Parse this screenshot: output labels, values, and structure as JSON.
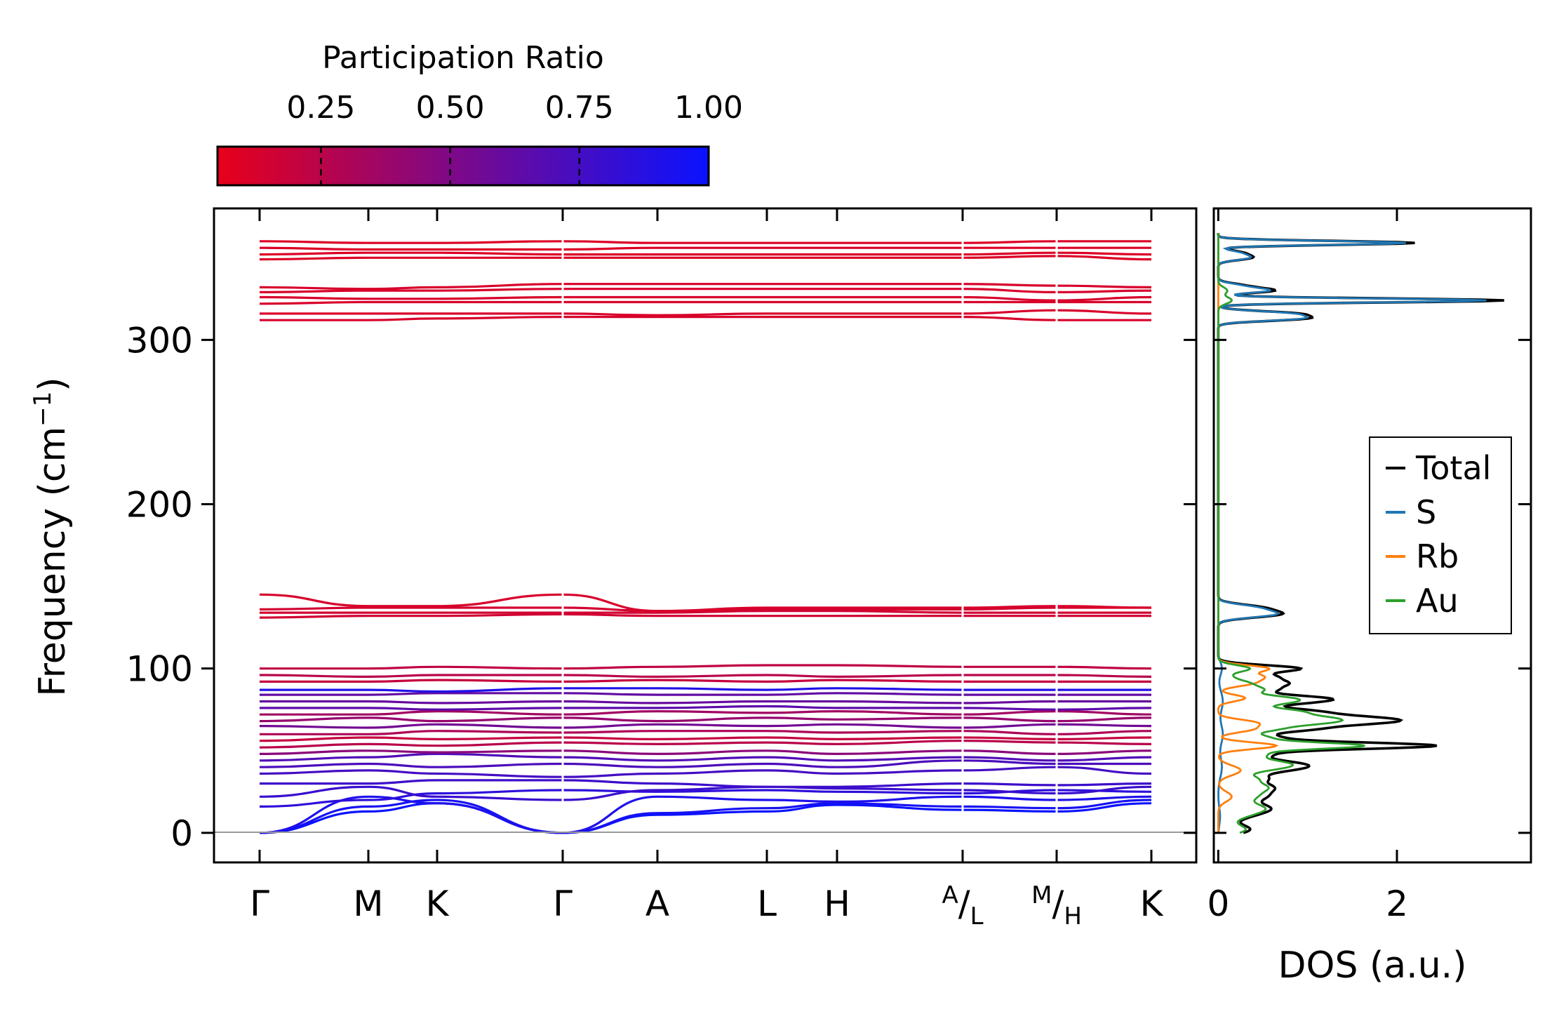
{
  "chart_data": [
    {
      "type": "line",
      "title": "",
      "ylabel": "Frequency (cm",
      "ylabel_sup": "−1",
      "ylabel_close": ")",
      "ylim": [
        -18,
        380
      ],
      "yticks": [
        0,
        100,
        200,
        300
      ],
      "x_segment_breaks": [
        0,
        1,
        2,
        3,
        4,
        5,
        6,
        7,
        8,
        9
      ],
      "x_tick_labels": [
        {
          "main": "Γ"
        },
        {
          "main": "M"
        },
        {
          "main": "K"
        },
        {
          "main": "Γ"
        },
        {
          "main": "A"
        },
        {
          "main": "L"
        },
        {
          "main": "H"
        },
        {
          "sup": "A",
          "slash": "/",
          "sub": "L"
        },
        {
          "sup": "M",
          "slash": "/",
          "sub": "H"
        },
        {
          "main": "K"
        }
      ],
      "color_by": "Participation Ratio",
      "colorbar": {
        "label": "Participation Ratio",
        "range": [
          0.05,
          1.0
        ],
        "ticks": [
          "0.25",
          "0.50",
          "0.75",
          "1.00"
        ],
        "tick_values": [
          0.25,
          0.5,
          0.75,
          1.0
        ],
        "low_color": "#e8001a",
        "high_color": "#0a12ff"
      },
      "bands": [
        {
          "f": [
            0,
            13,
            18,
            0,
            11,
            13,
            17,
            14,
            13,
            18
          ],
          "pr": 1.0
        },
        {
          "f": [
            0,
            16,
            20,
            0,
            12,
            15,
            18,
            16,
            15,
            20
          ],
          "pr": 0.95
        },
        {
          "f": [
            0,
            22,
            18,
            0,
            22,
            20,
            19,
            22,
            20,
            22
          ],
          "pr": 0.92
        },
        {
          "f": [
            16,
            20,
            24,
            26,
            25,
            26,
            25,
            24,
            26,
            25
          ],
          "pr": 0.85
        },
        {
          "f": [
            22,
            28,
            22,
            20,
            26,
            28,
            27,
            26,
            24,
            28
          ],
          "pr": 0.8
        },
        {
          "f": [
            30,
            30,
            32,
            32,
            30,
            28,
            28,
            30,
            29,
            30
          ],
          "pr": 0.78
        },
        {
          "f": [
            36,
            38,
            36,
            34,
            36,
            38,
            36,
            38,
            40,
            36
          ],
          "pr": 0.75
        },
        {
          "f": [
            40,
            42,
            40,
            42,
            40,
            42,
            40,
            44,
            42,
            42
          ],
          "pr": 0.72
        },
        {
          "f": [
            44,
            46,
            48,
            46,
            44,
            46,
            44,
            46,
            44,
            46
          ],
          "pr": 0.7
        },
        {
          "f": [
            48,
            50,
            49,
            50,
            48,
            50,
            48,
            50,
            48,
            50
          ],
          "pr": 0.45
        },
        {
          "f": [
            52,
            54,
            53,
            55,
            54,
            55,
            54,
            56,
            55,
            54
          ],
          "pr": 0.25
        },
        {
          "f": [
            56,
            58,
            57,
            58,
            57,
            58,
            57,
            58,
            57,
            58
          ],
          "pr": 0.2
        },
        {
          "f": [
            60,
            60,
            62,
            61,
            62,
            62,
            61,
            62,
            60,
            62
          ],
          "pr": 0.3
        },
        {
          "f": [
            65,
            64,
            66,
            64,
            66,
            65,
            66,
            64,
            66,
            65
          ],
          "pr": 0.55
        },
        {
          "f": [
            68,
            70,
            68,
            70,
            68,
            70,
            69,
            70,
            68,
            70
          ],
          "pr": 0.4
        },
        {
          "f": [
            72,
            72,
            74,
            72,
            74,
            73,
            74,
            72,
            74,
            72
          ],
          "pr": 0.35
        },
        {
          "f": [
            76,
            76,
            75,
            76,
            76,
            77,
            76,
            76,
            75,
            76
          ],
          "pr": 0.65
        },
        {
          "f": [
            80,
            80,
            79,
            80,
            79,
            80,
            80,
            79,
            80,
            80
          ],
          "pr": 0.6
        },
        {
          "f": [
            84,
            84,
            85,
            85,
            84,
            84,
            85,
            84,
            84,
            84
          ],
          "pr": 0.62
        },
        {
          "f": [
            87,
            87,
            86,
            88,
            88,
            87,
            88,
            87,
            87,
            87
          ],
          "pr": 0.9
        },
        {
          "f": [
            92,
            92,
            93,
            92,
            93,
            92,
            93,
            92,
            92,
            92
          ],
          "pr": 0.2
        },
        {
          "f": [
            96,
            95,
            96,
            96,
            95,
            96,
            95,
            96,
            96,
            95
          ],
          "pr": 0.25
        },
        {
          "f": [
            100,
            100,
            101,
            100,
            101,
            102,
            102,
            101,
            101,
            100
          ],
          "pr": 0.22
        },
        {
          "f": [
            131,
            132,
            132,
            133,
            132,
            132,
            132,
            132,
            132,
            132
          ],
          "pr": 0.15
        },
        {
          "f": [
            134,
            134,
            134,
            134,
            134,
            135,
            135,
            134,
            134,
            134
          ],
          "pr": 0.15
        },
        {
          "f": [
            136,
            137,
            137,
            137,
            135,
            136,
            136,
            136,
            137,
            137
          ],
          "pr": 0.14
        },
        {
          "f": [
            145,
            138,
            138,
            145,
            135,
            137,
            137,
            137,
            138,
            137
          ],
          "pr": 0.12
        },
        {
          "f": [
            312,
            312,
            313,
            314,
            314,
            314,
            314,
            314,
            312,
            312
          ],
          "pr": 0.12
        },
        {
          "f": [
            316,
            316,
            316,
            316,
            315,
            316,
            316,
            316,
            318,
            316
          ],
          "pr": 0.12
        },
        {
          "f": [
            322,
            323,
            323,
            323,
            323,
            323,
            323,
            323,
            323,
            323
          ],
          "pr": 0.12
        },
        {
          "f": [
            326,
            325,
            325,
            326,
            326,
            326,
            326,
            326,
            324,
            326
          ],
          "pr": 0.12
        },
        {
          "f": [
            329,
            330,
            330,
            331,
            331,
            331,
            331,
            331,
            329,
            330
          ],
          "pr": 0.12
        },
        {
          "f": [
            332,
            331,
            332,
            334,
            334,
            334,
            334,
            334,
            333,
            332
          ],
          "pr": 0.12
        },
        {
          "f": [
            349,
            350,
            350,
            350,
            350,
            350,
            350,
            350,
            351,
            349
          ],
          "pr": 0.1
        },
        {
          "f": [
            352,
            353,
            353,
            352,
            352,
            352,
            352,
            352,
            353,
            352
          ],
          "pr": 0.1
        },
        {
          "f": [
            356,
            355,
            355,
            355,
            356,
            356,
            356,
            356,
            356,
            356
          ],
          "pr": 0.1
        },
        {
          "f": [
            360,
            359,
            359,
            360,
            359,
            359,
            359,
            359,
            360,
            360
          ],
          "pr": 0.1
        }
      ]
    },
    {
      "type": "line",
      "title": "",
      "xlabel": "DOS (a.u.)",
      "xlim": [
        -0.05,
        3.5
      ],
      "xticks": [
        0,
        2
      ],
      "ylim": [
        -18,
        380
      ],
      "legend_position": "center-right",
      "series": [
        {
          "name": "Total",
          "color": "#000000",
          "peaks": [
            [
              2,
              0.35,
              3
            ],
            [
              10,
              0.25,
              3
            ],
            [
              15,
              0.5,
              3
            ],
            [
              22,
              0.45,
              3
            ],
            [
              28,
              0.55,
              3
            ],
            [
              33,
              0.3,
              2
            ],
            [
              38,
              0.5,
              3
            ],
            [
              42,
              0.75,
              3
            ],
            [
              48,
              0.45,
              2
            ],
            [
              53,
              2.4,
              2
            ],
            [
              58,
              0.6,
              2
            ],
            [
              63,
              0.9,
              2
            ],
            [
              67,
              1.35,
              2
            ],
            [
              70,
              1.3,
              2
            ],
            [
              74,
              0.95,
              2
            ],
            [
              79,
              0.65,
              2
            ],
            [
              82,
              1.0,
              2
            ],
            [
              87,
              0.55,
              2
            ],
            [
              91,
              0.65,
              2
            ],
            [
              95,
              0.55,
              2
            ],
            [
              100,
              0.9,
              2
            ],
            [
              133,
              0.65,
              2
            ],
            [
              137,
              0.45,
              2
            ],
            [
              313,
              0.9,
              1.5
            ],
            [
              316,
              0.8,
              1.5
            ],
            [
              324,
              3.2,
              1.2
            ],
            [
              330,
              0.6,
              1.5
            ],
            [
              333,
              0.25,
              1.5
            ],
            [
              350,
              0.35,
              1.5
            ],
            [
              353,
              0.25,
              1.5
            ],
            [
              359,
              2.2,
              1.2
            ]
          ]
        },
        {
          "name": "S",
          "color": "#1f77b4",
          "peaks": [
            [
              10,
              0.02,
              5
            ],
            [
              40,
              0.04,
              6
            ],
            [
              60,
              0.05,
              6
            ],
            [
              80,
              0.05,
              6
            ],
            [
              100,
              0.04,
              4
            ],
            [
              133,
              0.6,
              2
            ],
            [
              137,
              0.4,
              2
            ],
            [
              313,
              0.85,
              1.5
            ],
            [
              316,
              0.75,
              1.5
            ],
            [
              324,
              3.0,
              1.2
            ],
            [
              330,
              0.55,
              1.5
            ],
            [
              333,
              0.22,
              1.5
            ],
            [
              350,
              0.33,
              1.5
            ],
            [
              353,
              0.22,
              1.5
            ],
            [
              359,
              2.1,
              1.2
            ]
          ]
        },
        {
          "name": "Rb",
          "color": "#ff7f0e",
          "peaks": [
            [
              22,
              0.15,
              3
            ],
            [
              38,
              0.25,
              3
            ],
            [
              53,
              0.65,
              2
            ],
            [
              63,
              0.35,
              2
            ],
            [
              67,
              0.4,
              2
            ],
            [
              82,
              0.3,
              2
            ],
            [
              91,
              0.35,
              2
            ],
            [
              95,
              0.45,
              2
            ],
            [
              100,
              0.55,
              2
            ]
          ]
        },
        {
          "name": "Au",
          "color": "#2ca02c",
          "peaks": [
            [
              2,
              0.3,
              3
            ],
            [
              10,
              0.22,
              3
            ],
            [
              15,
              0.45,
              3
            ],
            [
              22,
              0.35,
              3
            ],
            [
              28,
              0.5,
              3
            ],
            [
              33,
              0.25,
              2
            ],
            [
              38,
              0.28,
              3
            ],
            [
              42,
              0.7,
              3
            ],
            [
              48,
              0.4,
              2
            ],
            [
              53,
              1.6,
              2
            ],
            [
              58,
              0.5,
              2
            ],
            [
              63,
              0.55,
              2
            ],
            [
              67,
              0.9,
              2
            ],
            [
              70,
              0.9,
              2
            ],
            [
              74,
              0.8,
              2
            ],
            [
              79,
              0.55,
              2
            ],
            [
              82,
              0.65,
              2
            ],
            [
              87,
              0.45,
              2
            ],
            [
              91,
              0.3,
              2
            ],
            [
              95,
              0.12,
              2
            ],
            [
              100,
              0.35,
              2
            ],
            [
              324,
              0.15,
              2
            ],
            [
              330,
              0.1,
              2
            ]
          ]
        }
      ]
    }
  ]
}
